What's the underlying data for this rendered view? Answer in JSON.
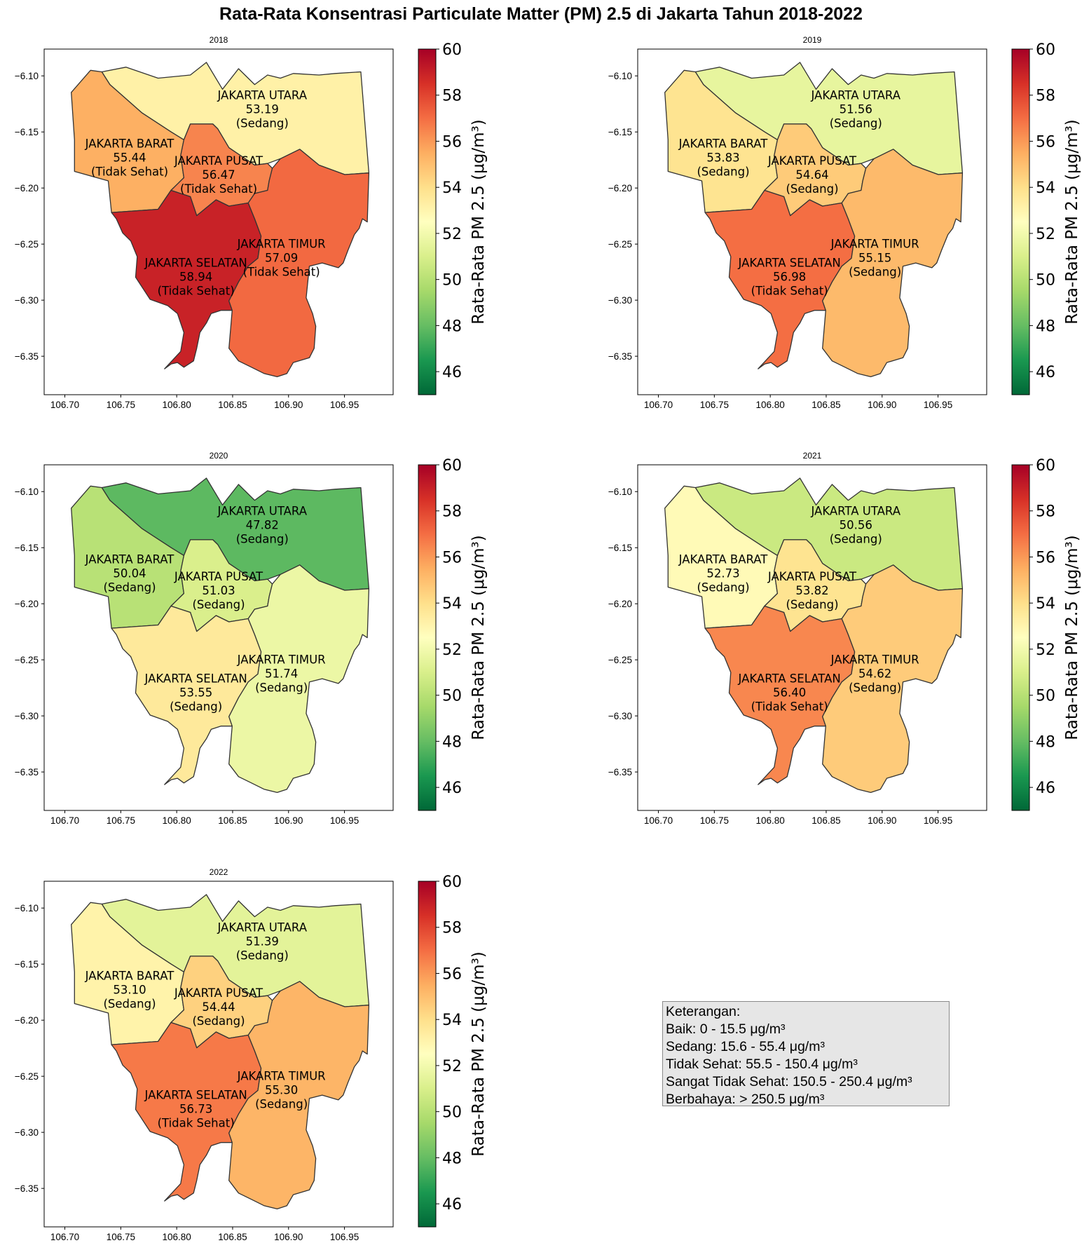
{
  "title": "Rata-Rata Konsentrasi Particulate Matter (PM) 2.5 di Jakarta Tahun 2018-2022",
  "colorbar": {
    "label": "Rata-Rata PM 2.5 (μg/m³)",
    "min": 45,
    "max": 60,
    "ticks": [
      "46",
      "48",
      "50",
      "52",
      "54",
      "56",
      "58",
      "60"
    ],
    "colormap": "RdYlGn_r"
  },
  "axes": {
    "x_ticks": [
      "106.70",
      "106.75",
      "106.80",
      "106.85",
      "106.90",
      "106.95"
    ],
    "y_ticks": [
      "−6.10",
      "−6.15",
      "−6.20",
      "−6.25",
      "−6.30",
      "−6.35"
    ],
    "xlim": [
      106.6815,
      106.9935
    ],
    "ylim": [
      -6.3843,
      -6.0761
    ]
  },
  "legend": {
    "heading": "Keterangan:",
    "items": [
      "Baik: 0 - 15.5 μg/m³",
      "Sedang: 15.6 - 55.4 μg/m³",
      "Tidak Sehat: 55.5 - 150.4 μg/m³",
      "Sangat Tidak Sehat: 150.5 - 250.4 μg/m³",
      "Berbahaya: > 250.5 μg/m³"
    ]
  },
  "districts": [
    "JAKARTA UTARA",
    "JAKARTA BARAT",
    "JAKARTA PUSAT",
    "JAKARTA SELATAN",
    "JAKARTA TIMUR"
  ],
  "chart_data": [
    {
      "type": "choropleth",
      "title": "2018",
      "regions": [
        {
          "name": "JAKARTA UTARA",
          "value": 53.19,
          "value_label": "53.19",
          "category": "(Sedang)"
        },
        {
          "name": "JAKARTA BARAT",
          "value": 55.44,
          "value_label": "55.44",
          "category": "(Tidak Sehat)"
        },
        {
          "name": "JAKARTA PUSAT",
          "value": 56.47,
          "value_label": "56.47",
          "category": "(Tidak Sehat)"
        },
        {
          "name": "JAKARTA SELATAN",
          "value": 58.94,
          "value_label": "58.94",
          "category": "(Tidak Sehat)"
        },
        {
          "name": "JAKARTA TIMUR",
          "value": 57.09,
          "value_label": "57.09",
          "category": "(Tidak Sehat)"
        }
      ]
    },
    {
      "type": "choropleth",
      "title": "2019",
      "regions": [
        {
          "name": "JAKARTA UTARA",
          "value": 51.56,
          "value_label": "51.56",
          "category": "(Sedang)"
        },
        {
          "name": "JAKARTA BARAT",
          "value": 53.83,
          "value_label": "53.83",
          "category": "(Sedang)"
        },
        {
          "name": "JAKARTA PUSAT",
          "value": 54.64,
          "value_label": "54.64",
          "category": "(Sedang)"
        },
        {
          "name": "JAKARTA SELATAN",
          "value": 56.98,
          "value_label": "56.98",
          "category": "(Tidak Sehat)"
        },
        {
          "name": "JAKARTA TIMUR",
          "value": 55.15,
          "value_label": "55.15",
          "category": "(Sedang)"
        }
      ]
    },
    {
      "type": "choropleth",
      "title": "2020",
      "regions": [
        {
          "name": "JAKARTA UTARA",
          "value": 47.82,
          "value_label": "47.82",
          "category": "(Sedang)"
        },
        {
          "name": "JAKARTA BARAT",
          "value": 50.04,
          "value_label": "50.04",
          "category": "(Sedang)"
        },
        {
          "name": "JAKARTA PUSAT",
          "value": 51.03,
          "value_label": "51.03",
          "category": "(Sedang)"
        },
        {
          "name": "JAKARTA SELATAN",
          "value": 53.55,
          "value_label": "53.55",
          "category": "(Sedang)"
        },
        {
          "name": "JAKARTA TIMUR",
          "value": 51.74,
          "value_label": "51.74",
          "category": "(Sedang)"
        }
      ]
    },
    {
      "type": "choropleth",
      "title": "2021",
      "regions": [
        {
          "name": "JAKARTA UTARA",
          "value": 50.56,
          "value_label": "50.56",
          "category": "(Sedang)"
        },
        {
          "name": "JAKARTA BARAT",
          "value": 52.73,
          "value_label": "52.73",
          "category": "(Sedang)"
        },
        {
          "name": "JAKARTA PUSAT",
          "value": 53.82,
          "value_label": "53.82",
          "category": "(Sedang)"
        },
        {
          "name": "JAKARTA SELATAN",
          "value": 56.4,
          "value_label": "56.40",
          "category": "(Tidak Sehat)"
        },
        {
          "name": "JAKARTA TIMUR",
          "value": 54.62,
          "value_label": "54.62",
          "category": "(Sedang)"
        }
      ]
    },
    {
      "type": "choropleth",
      "title": "2022",
      "regions": [
        {
          "name": "JAKARTA UTARA",
          "value": 51.39,
          "value_label": "51.39",
          "category": "(Sedang)"
        },
        {
          "name": "JAKARTA BARAT",
          "value": 53.1,
          "value_label": "53.10",
          "category": "(Sedang)"
        },
        {
          "name": "JAKARTA PUSAT",
          "value": 54.44,
          "value_label": "54.44",
          "category": "(Sedang)"
        },
        {
          "name": "JAKARTA SELATAN",
          "value": 56.73,
          "value_label": "56.73",
          "category": "(Tidak Sehat)"
        },
        {
          "name": "JAKARTA TIMUR",
          "value": 55.3,
          "value_label": "55.30",
          "category": "(Sedang)"
        }
      ]
    }
  ]
}
